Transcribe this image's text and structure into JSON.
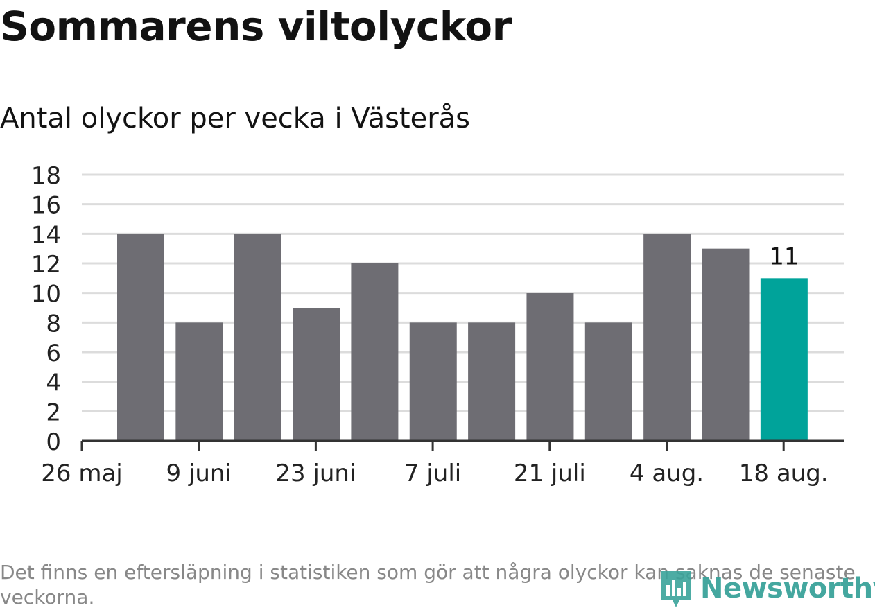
{
  "header": {
    "title": "Sommarens viltolyckor",
    "subtitle": "Antal olyckor per vecka i Västerås"
  },
  "footer": {
    "note": "Det finns en eftersläpning i statistiken som gör att några olyckor kan saknas de senaste veckorna.",
    "brand": "Newsworthy"
  },
  "colors": {
    "bar": "#6e6d73",
    "highlight": "#00a39a",
    "grid": "#dcdcdc",
    "axis": "#333333",
    "brand": "#3aa39a"
  },
  "chart_data": {
    "type": "bar",
    "weeks": [
      "2019-05-27",
      "2019-06-03",
      "2019-06-10",
      "2019-06-17",
      "2019-06-24",
      "2019-07-01",
      "2019-07-08",
      "2019-07-15",
      "2019-07-22",
      "2019-07-29",
      "2019-08-05",
      "2019-08-12"
    ],
    "values": [
      14,
      8,
      14,
      9,
      12,
      8,
      8,
      10,
      8,
      14,
      13,
      11
    ],
    "highlight_index": 11,
    "highlight_label": "11",
    "ylim": [
      0,
      18
    ],
    "yticks": [
      "0",
      "2",
      "4",
      "6",
      "8",
      "10",
      "12",
      "14",
      "16",
      "18"
    ],
    "xticks": [
      "26 maj",
      "9 juni",
      "23 juni",
      "7 juli",
      "21 juli",
      "4 aug.",
      "18 aug."
    ],
    "grid": true
  }
}
